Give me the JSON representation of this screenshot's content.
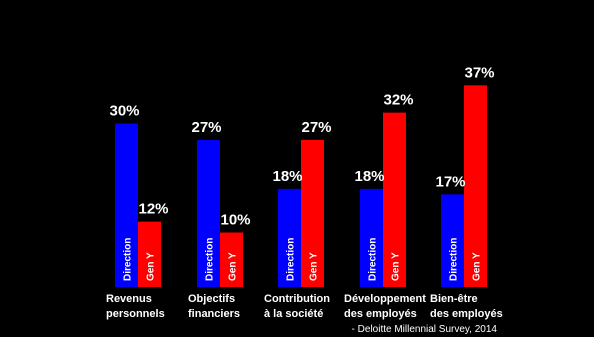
{
  "chart_data": {
    "type": "bar",
    "categories": [
      "Revenus personnels",
      "Objectifs financiers",
      "Contribution à la société",
      "Développement des employés",
      "Bien-être des employés"
    ],
    "category_lines": [
      [
        "Revenus",
        "personnels"
      ],
      [
        "Objectifs",
        "financiers"
      ],
      [
        "Contribution",
        "à la société"
      ],
      [
        "Développement",
        "des employés"
      ],
      [
        "Bien-être",
        "des employés"
      ]
    ],
    "series": [
      {
        "name": "Direction",
        "color": "#0000ff",
        "values": [
          30,
          27,
          18,
          18,
          17
        ],
        "labels": [
          "30%",
          "27%",
          "18%",
          "18%",
          "17%"
        ]
      },
      {
        "name": "Gen Y",
        "color": "#ff0000",
        "values": [
          12,
          10,
          27,
          32,
          37
        ],
        "labels": [
          "12%",
          "10%",
          "27%",
          "32%",
          "37%"
        ]
      }
    ],
    "ylim": [
      0,
      40
    ],
    "grid": false,
    "legend": "none"
  },
  "source_note": "- Deloitte Millennial Survey, 2014",
  "background": "#000000"
}
